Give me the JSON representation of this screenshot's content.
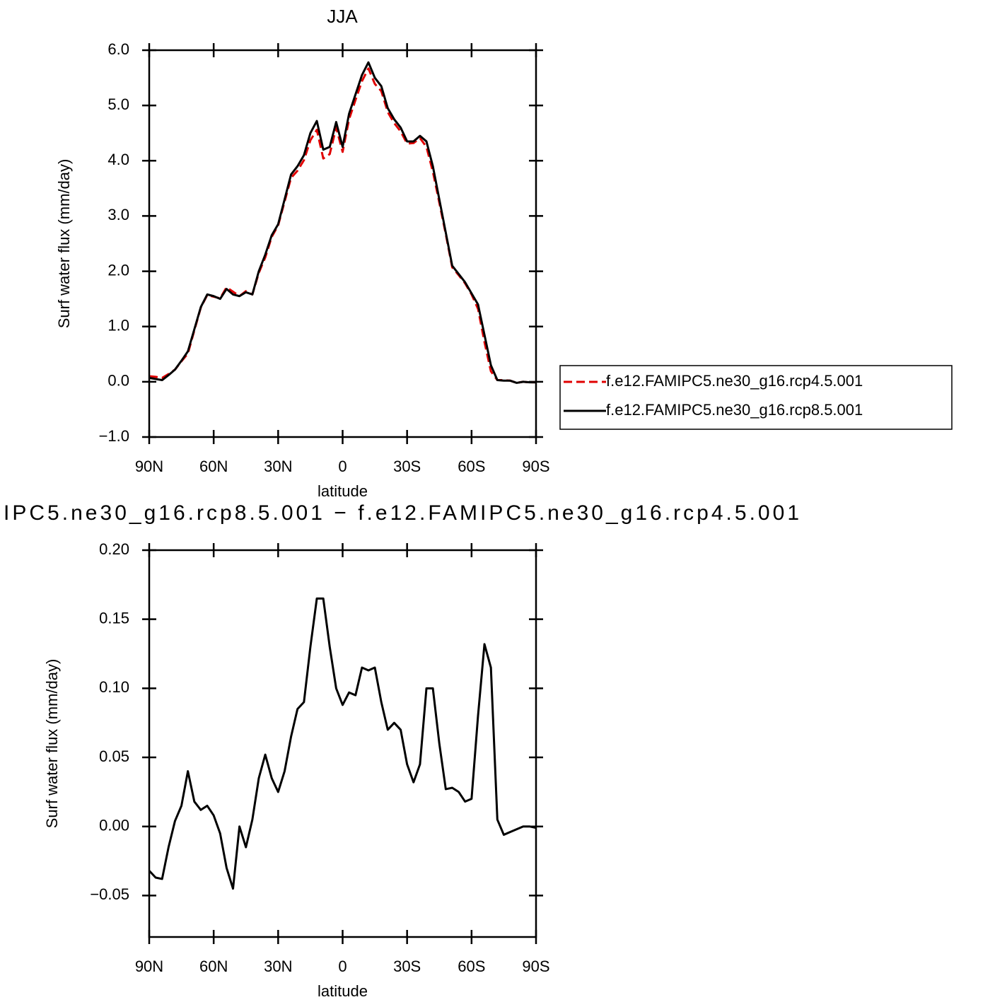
{
  "chart_data": [
    {
      "type": "line",
      "title": "JJA",
      "xlabel": "latitude",
      "ylabel": "Surf water flux (mm/day)",
      "x": [
        90,
        87,
        84,
        81,
        78,
        75,
        72,
        69,
        66,
        63,
        60,
        57,
        54,
        51,
        48,
        45,
        42,
        39,
        36,
        33,
        30,
        27,
        24,
        21,
        18,
        15,
        12,
        9,
        6,
        3,
        0,
        -3,
        -6,
        -9,
        -12,
        -15,
        -18,
        -21,
        -24,
        -27,
        -30,
        -33,
        -36,
        -39,
        -42,
        -45,
        -48,
        -51,
        -54,
        -57,
        -60,
        -63,
        -66,
        -69,
        -72,
        -75,
        -78,
        -81,
        -84,
        -87,
        -90
      ],
      "xlim": [
        90,
        -90
      ],
      "xticks": [
        {
          "value": 90,
          "label": "90N"
        },
        {
          "value": 60,
          "label": "60N"
        },
        {
          "value": 30,
          "label": "30N"
        },
        0,
        {
          "value": -30,
          "label": "30S"
        },
        {
          "value": -60,
          "label": "60S"
        },
        {
          "value": -90,
          "label": "90S"
        }
      ],
      "ylim": [
        -1,
        6
      ],
      "yticks": [
        {
          "value": -1,
          "label": "−1.0"
        },
        {
          "value": 0,
          "label": "0.0"
        },
        {
          "value": 1,
          "label": "1.0"
        },
        {
          "value": 2,
          "label": "2.0"
        },
        {
          "value": 3,
          "label": "3.0"
        },
        {
          "value": 4,
          "label": "4.0"
        },
        {
          "value": 5,
          "label": "5.0"
        },
        {
          "value": 6,
          "label": "6.0"
        }
      ],
      "legend": "right",
      "series": [
        {
          "name": "f.e12.FAMIPC5.ne30_g16.rcp4.5.001",
          "color": "#e00000",
          "dashed": true,
          "values": [
            0.1,
            0.09,
            0.07,
            0.14,
            0.22,
            0.37,
            0.51,
            0.93,
            1.34,
            1.57,
            1.54,
            1.51,
            1.71,
            1.63,
            1.55,
            1.64,
            1.58,
            1.97,
            2.25,
            2.62,
            2.83,
            3.26,
            3.69,
            3.82,
            4.01,
            4.37,
            4.56,
            4.04,
            4.12,
            4.6,
            4.16,
            4.75,
            5.1,
            5.44,
            5.67,
            5.39,
            5.26,
            4.88,
            4.68,
            4.53,
            4.31,
            4.32,
            4.41,
            4.25,
            3.8,
            3.24,
            2.67,
            2.07,
            1.93,
            1.78,
            1.58,
            1.32,
            0.72,
            0.19,
            0.03,
            0.03,
            0.02,
            -0.02,
            0.0,
            -0.01,
            -0.01
          ]
        },
        {
          "name": "f.e12.FAMIPC5.ne30_g16.rcp8.5.001",
          "color": "#000000",
          "dashed": false,
          "values": [
            0.07,
            0.05,
            0.03,
            0.12,
            0.22,
            0.38,
            0.55,
            0.95,
            1.35,
            1.58,
            1.55,
            1.5,
            1.68,
            1.58,
            1.55,
            1.62,
            1.58,
            2.0,
            2.3,
            2.65,
            2.85,
            3.3,
            3.75,
            3.9,
            4.1,
            4.5,
            4.72,
            4.2,
            4.25,
            4.7,
            4.25,
            4.85,
            5.2,
            5.55,
            5.78,
            5.5,
            5.35,
            4.95,
            4.75,
            4.6,
            4.35,
            4.35,
            4.45,
            4.35,
            3.9,
            3.3,
            2.7,
            2.1,
            1.95,
            1.8,
            1.6,
            1.4,
            0.85,
            0.3,
            0.03,
            0.02,
            0.02,
            -0.02,
            0.0,
            -0.01,
            -0.01
          ]
        }
      ]
    },
    {
      "type": "line",
      "title": "IPC5.ne30_g16.rcp8.5.001 − f.e12.FAMIPC5.ne30_g16.rcp4.5.001",
      "xlabel": "latitude",
      "ylabel": "Surf water flux (mm/day)",
      "x": [
        90,
        87,
        84,
        81,
        78,
        75,
        72,
        69,
        66,
        63,
        60,
        57,
        54,
        51,
        48,
        45,
        42,
        39,
        36,
        33,
        30,
        27,
        24,
        21,
        18,
        15,
        12,
        9,
        6,
        3,
        0,
        -3,
        -6,
        -9,
        -12,
        -15,
        -18,
        -21,
        -24,
        -27,
        -30,
        -33,
        -36,
        -39,
        -42,
        -45,
        -48,
        -51,
        -54,
        -57,
        -60,
        -63,
        -66,
        -69,
        -72,
        -75,
        -78,
        -81,
        -84,
        -87,
        -90
      ],
      "xlim": [
        90,
        -90
      ],
      "xticks": [
        {
          "value": 90,
          "label": "90N"
        },
        {
          "value": 60,
          "label": "60N"
        },
        {
          "value": 30,
          "label": "30N"
        },
        0,
        {
          "value": -30,
          "label": "30S"
        },
        {
          "value": -60,
          "label": "60S"
        },
        {
          "value": -90,
          "label": "90S"
        }
      ],
      "ylim": [
        -0.08,
        0.2
      ],
      "yticks": [
        {
          "value": -0.05,
          "label": "−0.05"
        },
        {
          "value": 0,
          "label": "0.00"
        },
        0.05,
        {
          "value": 0.1,
          "label": "0.10"
        },
        0.15,
        {
          "value": 0.2,
          "label": "0.20"
        }
      ],
      "series": [
        {
          "color": "#000000",
          "dashed": false,
          "values": [
            -0.032,
            -0.037,
            -0.038,
            -0.015,
            0.004,
            0.015,
            0.04,
            0.018,
            0.012,
            0.015,
            0.008,
            -0.005,
            -0.03,
            -0.045,
            0.0,
            -0.015,
            0.005,
            0.035,
            0.052,
            0.035,
            0.025,
            0.04,
            0.065,
            0.085,
            0.09,
            0.13,
            0.165,
            0.165,
            0.13,
            0.1,
            0.088,
            0.097,
            0.095,
            0.115,
            0.113,
            0.115,
            0.09,
            0.07,
            0.075,
            0.07,
            0.045,
            0.032,
            0.045,
            0.1,
            0.1,
            0.06,
            0.027,
            0.028,
            0.025,
            0.018,
            0.02,
            0.08,
            0.132,
            0.115,
            0.005,
            -0.006,
            -0.004,
            -0.002,
            0.0,
            0.0,
            -0.001
          ]
        }
      ]
    }
  ]
}
